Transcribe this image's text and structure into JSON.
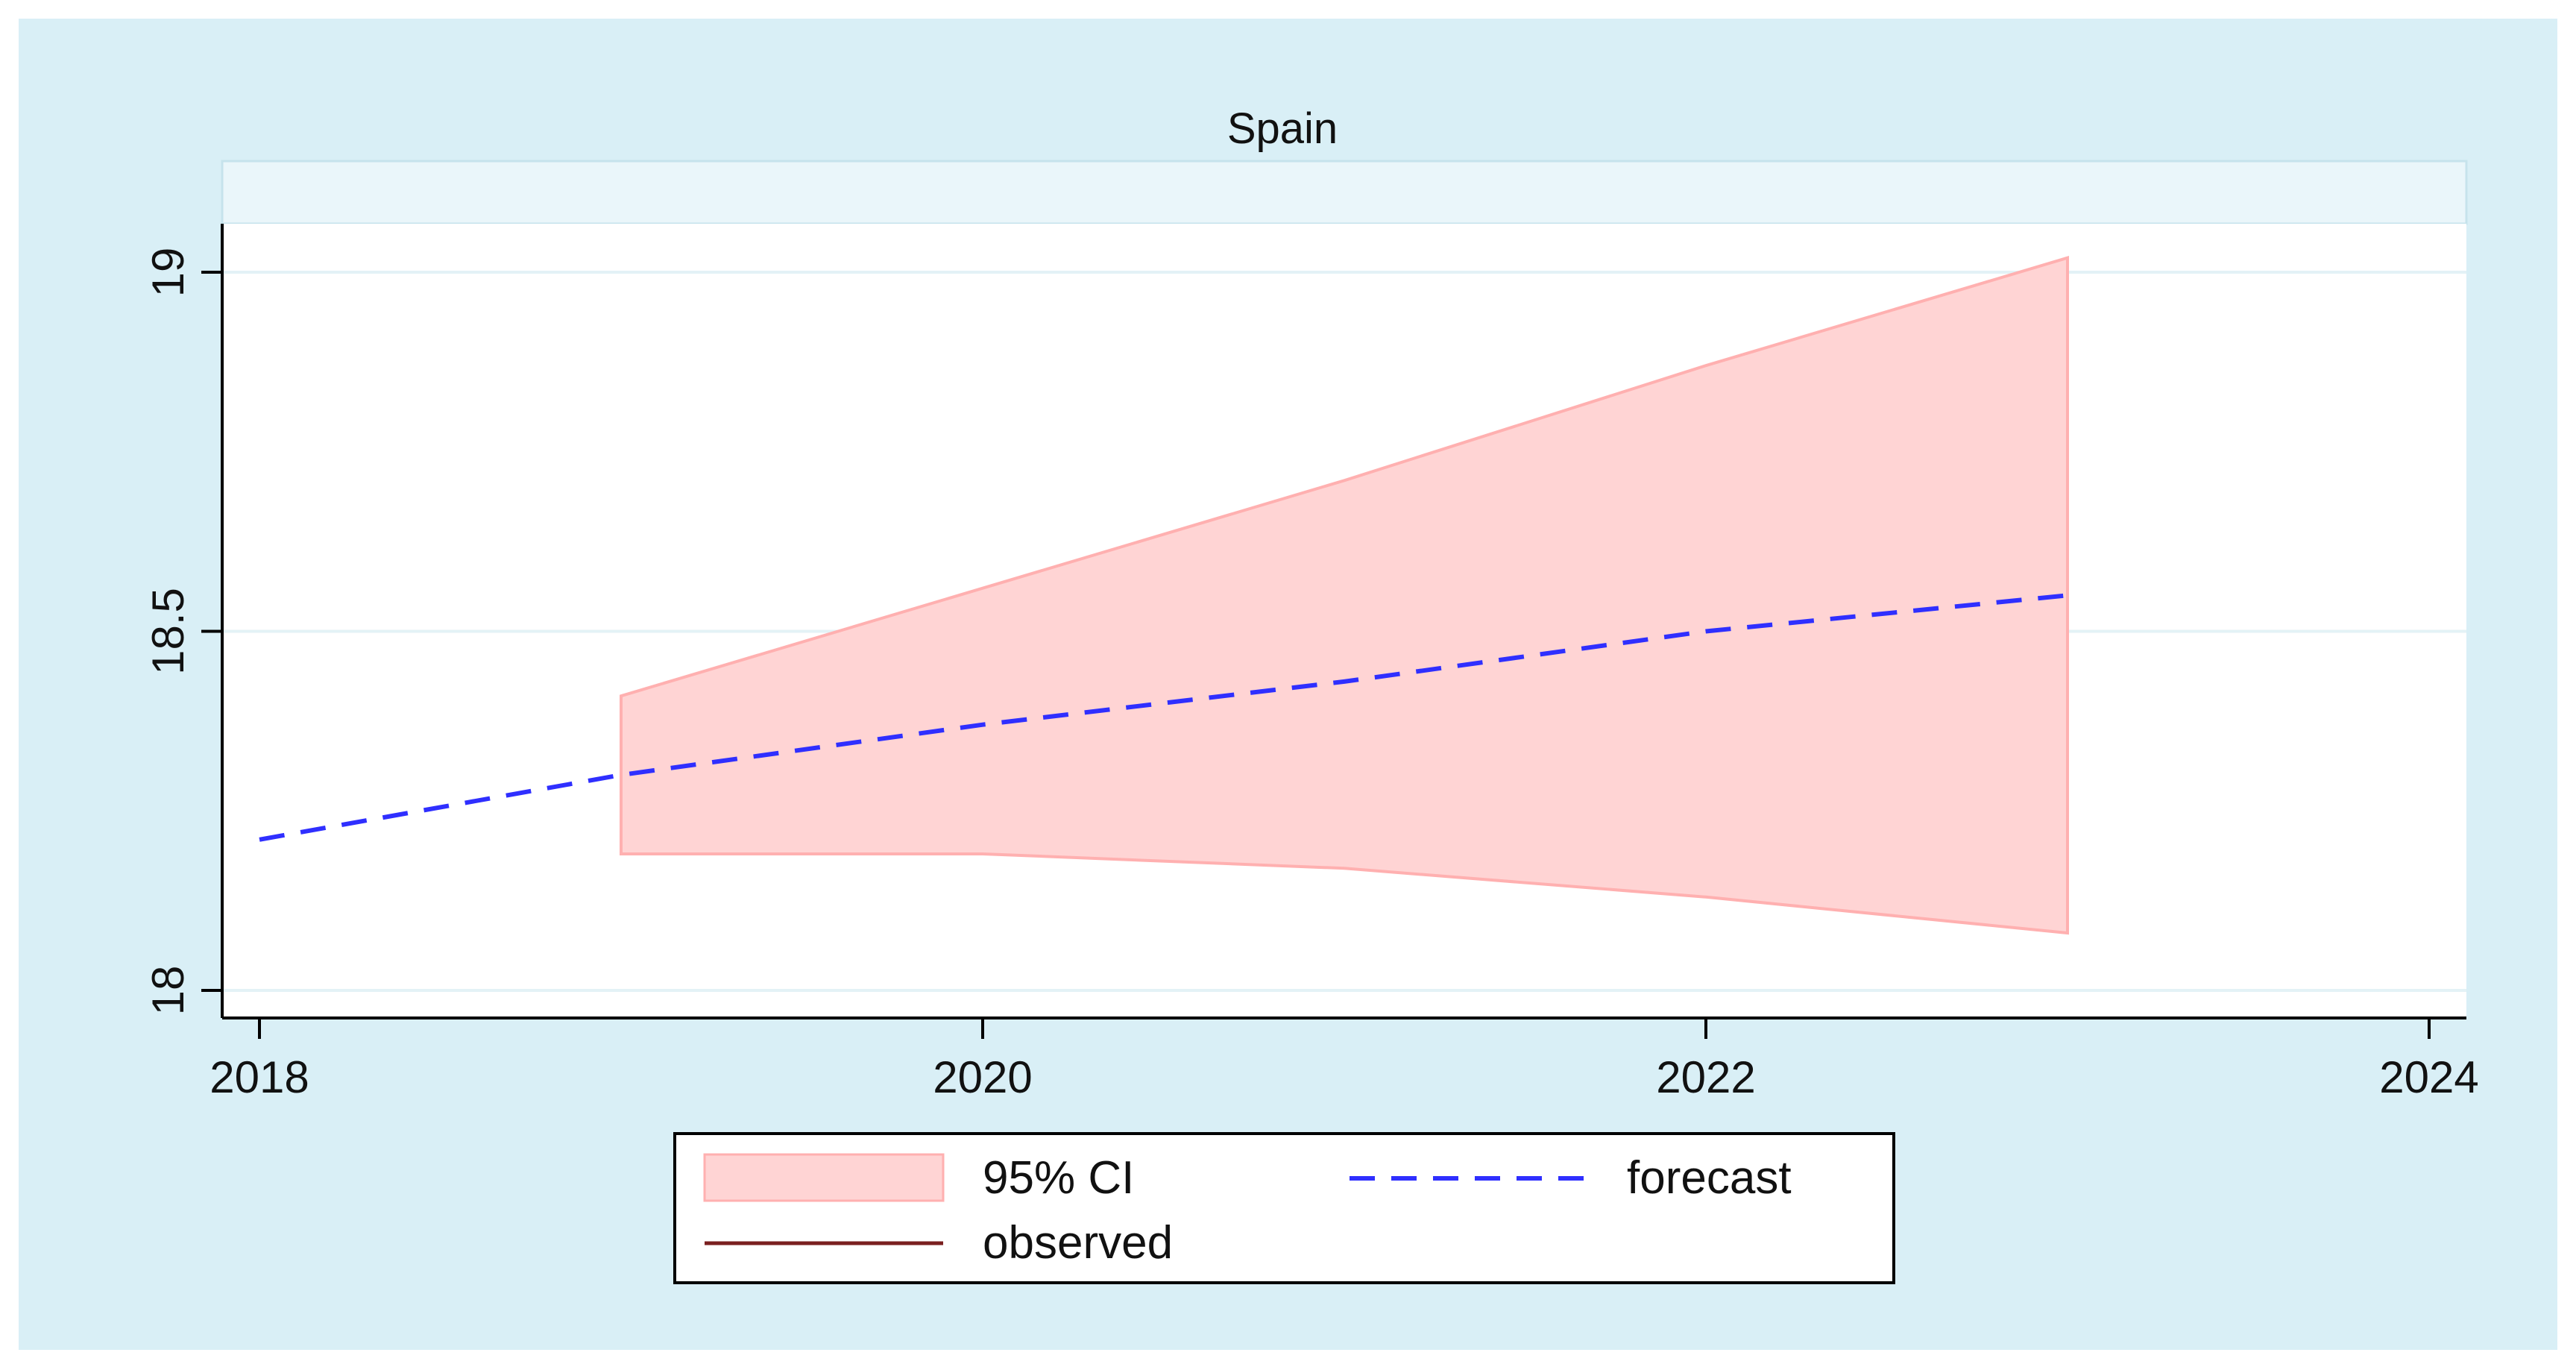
{
  "chart_data": {
    "type": "line",
    "title": "Spain",
    "xlabel": "",
    "ylabel": "",
    "xlim": [
      2018,
      2024
    ],
    "ylim": [
      18,
      19
    ],
    "x_ticks": [
      {
        "value": 2018,
        "label": "2018"
      },
      {
        "value": 2020,
        "label": "2020"
      },
      {
        "value": 2022,
        "label": "2022"
      },
      {
        "value": 2024,
        "label": "2024"
      }
    ],
    "y_ticks": [
      {
        "value": 18,
        "label": "18"
      },
      {
        "value": 18.5,
        "label": "18.5"
      },
      {
        "value": 19,
        "label": "19"
      }
    ],
    "grid": true,
    "legend_position": "bottom",
    "series": [
      {
        "name": "95% CI",
        "kind": "band",
        "color": "#ffd4d4",
        "edge_color": "#ffb0b0",
        "x": [
          2019,
          2020,
          2021,
          2022,
          2023
        ],
        "lower": [
          18.19,
          18.19,
          18.17,
          18.13,
          18.08
        ],
        "upper": [
          18.41,
          18.56,
          18.71,
          18.87,
          19.02
        ]
      },
      {
        "name": "forecast",
        "kind": "line",
        "style": "dashed",
        "color": "#2f2fff",
        "x": [
          2018,
          2019,
          2020,
          2021,
          2022,
          2023
        ],
        "y": [
          18.21,
          18.3,
          18.37,
          18.43,
          18.5,
          18.55
        ]
      },
      {
        "name": "observed",
        "kind": "line",
        "style": "solid",
        "color": "#7a1f1f",
        "x": [],
        "y": []
      }
    ],
    "colors": {
      "outer_background": "#d9eff6",
      "plot_background": "#ffffff",
      "gridline": "#e3f2f6",
      "axis": "#000000"
    }
  }
}
